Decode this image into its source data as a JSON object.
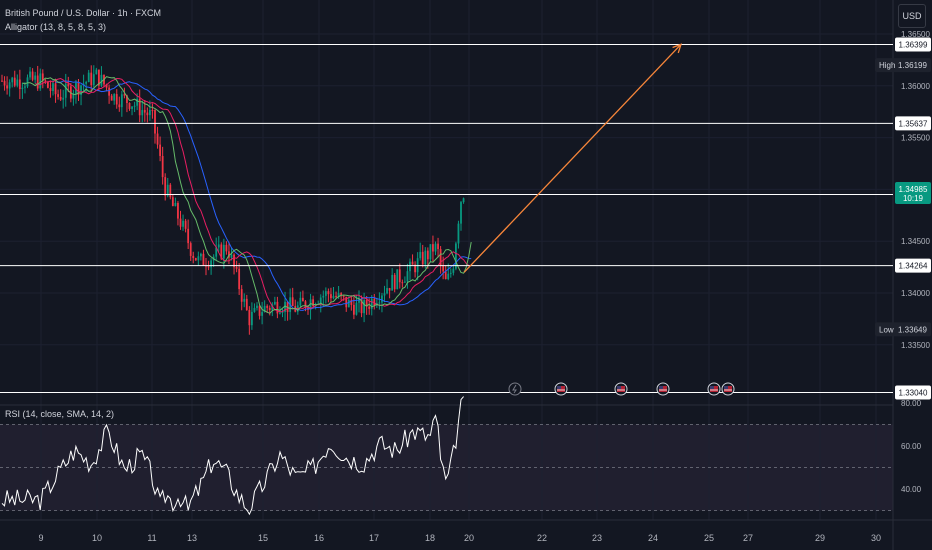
{
  "header": {
    "symbol_line": "British Pound / U.S. Dollar · 1h · FXCM",
    "indicator_line": "Alligator (13, 8, 5, 8, 5, 3)"
  },
  "currency_button": "USD",
  "price_axis": {
    "ticks": [
      "1.36500",
      "1.36000",
      "1.35500",
      "1.35000",
      "1.34500",
      "1.34000",
      "1.33500"
    ],
    "high": {
      "label": "High",
      "value": "1.36199"
    },
    "low": {
      "label": "Low",
      "value": "1.33649"
    },
    "current": {
      "price": "1.34985",
      "countdown": "10:19"
    }
  },
  "rsi": {
    "label": "RSI (14, close, SMA, 14, 2)",
    "ticks": [
      "80.00",
      "60.00",
      "40.00"
    ]
  },
  "x_axis": {
    "ticks": [
      "9",
      "10",
      "11",
      "13",
      "15",
      "16",
      "17",
      "18",
      "20",
      "22",
      "23",
      "24",
      "25",
      "27",
      "29",
      "30"
    ]
  },
  "colors": {
    "background": "#131722",
    "up": "#089981",
    "down": "#f23645",
    "arrow": "#f7863a",
    "jaw": "#2962ff",
    "teeth": "#e91e63",
    "lips": "#66bb6a",
    "rsi": "#ffffff",
    "rsi_band": "#2a2438"
  },
  "events": [
    "lightning-icon",
    "flag-icon",
    "flag-icon",
    "flag-icon",
    "flag-icon",
    "flag-icon"
  ],
  "chart_data": {
    "type": "candlestick",
    "pair": "GBP/USD",
    "timeframe": "1h",
    "y_range": [
      1.33,
      1.366
    ],
    "horizontal_levels": [
      {
        "price": 1.36399,
        "label": "1.36399"
      },
      {
        "price": 1.35637,
        "label": "1.35637"
      },
      {
        "price": 1.34951,
        "label": "1.34951"
      },
      {
        "price": 1.34264,
        "label": "1.34264"
      },
      {
        "price": 1.3304,
        "label": "1.33040"
      }
    ],
    "price_path": [
      [
        9.0,
        1.3605
      ],
      [
        9.3,
        1.359
      ],
      [
        9.6,
        1.3598
      ],
      [
        10.0,
        1.361
      ],
      [
        10.3,
        1.359
      ],
      [
        10.6,
        1.3585
      ],
      [
        11.0,
        1.357
      ],
      [
        11.3,
        1.354
      ],
      [
        11.6,
        1.3505
      ],
      [
        12.0,
        1.3485
      ],
      [
        12.4,
        1.347
      ],
      [
        12.8,
        1.345
      ],
      [
        13.2,
        1.343
      ],
      [
        13.6,
        1.3435
      ],
      [
        14.0,
        1.3445
      ],
      [
        14.3,
        1.341
      ],
      [
        14.6,
        1.3375
      ],
      [
        15.0,
        1.3385
      ],
      [
        15.3,
        1.339
      ],
      [
        15.6,
        1.3385
      ],
      [
        15.9,
        1.3395
      ],
      [
        16.2,
        1.34
      ],
      [
        16.5,
        1.339
      ],
      [
        16.8,
        1.3385
      ],
      [
        17.0,
        1.3395
      ],
      [
        17.3,
        1.341
      ],
      [
        17.6,
        1.342
      ],
      [
        17.9,
        1.3435
      ],
      [
        18.2,
        1.3445
      ],
      [
        18.4,
        1.344
      ],
      [
        18.6,
        1.342
      ],
      [
        18.8,
        1.341
      ],
      [
        19.0,
        1.3415
      ],
      [
        19.2,
        1.343
      ],
      [
        19.4,
        1.3465
      ],
      [
        19.6,
        1.3492
      ],
      [
        19.75,
        1.34985
      ]
    ],
    "projection_arrow": {
      "from": [
        19.75,
        1.342
      ],
      "to": [
        24.5,
        1.364
      ]
    },
    "rsi_values": [
      [
        9.0,
        35
      ],
      [
        9.3,
        47
      ],
      [
        9.6,
        58
      ],
      [
        9.9,
        52
      ],
      [
        10.2,
        67
      ],
      [
        10.5,
        49
      ],
      [
        10.8,
        56
      ],
      [
        11.1,
        42
      ],
      [
        11.4,
        32
      ],
      [
        11.7,
        38
      ],
      [
        12.0,
        34
      ],
      [
        12.4,
        37
      ],
      [
        12.8,
        30
      ],
      [
        13.2,
        40
      ],
      [
        13.6,
        54
      ],
      [
        14.0,
        47
      ],
      [
        14.3,
        37
      ],
      [
        14.6,
        31
      ],
      [
        15.0,
        42
      ],
      [
        15.3,
        56
      ],
      [
        15.6,
        45
      ],
      [
        15.9,
        50
      ],
      [
        16.2,
        62
      ],
      [
        16.5,
        55
      ],
      [
        16.8,
        52
      ],
      [
        17.1,
        61
      ],
      [
        17.4,
        58
      ],
      [
        17.7,
        67
      ],
      [
        18.0,
        64
      ],
      [
        18.2,
        72
      ],
      [
        18.4,
        69
      ],
      [
        18.6,
        50
      ],
      [
        18.8,
        43
      ],
      [
        19.0,
        47
      ],
      [
        19.2,
        56
      ],
      [
        19.4,
        68
      ],
      [
        19.6,
        78
      ],
      [
        19.75,
        80
      ]
    ],
    "rsi_range": [
      28,
      83
    ],
    "rsi_bands": [
      70,
      50,
      30
    ]
  }
}
